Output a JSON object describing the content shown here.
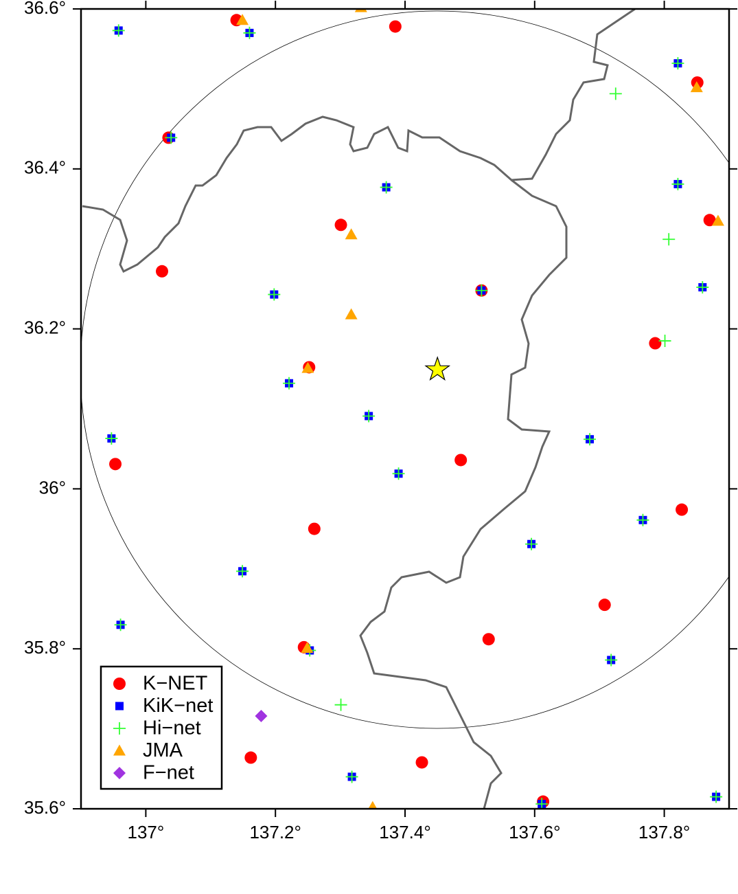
{
  "chart_data": {
    "type": "scatter",
    "xlim": [
      136.9,
      137.9
    ],
    "ylim": [
      35.6,
      36.6
    ],
    "xticks": [
      {
        "value": 137,
        "label": "137°"
      },
      {
        "value": 137.2,
        "label": "137.2°"
      },
      {
        "value": 137.4,
        "label": "137.4°"
      },
      {
        "value": 137.6,
        "label": "137.6°"
      },
      {
        "value": 137.8,
        "label": "137.8°"
      }
    ],
    "yticks": [
      {
        "value": 35.6,
        "label": "35.6°"
      },
      {
        "value": 35.8,
        "label": "35.8°"
      },
      {
        "value": 36,
        "label": "36°"
      },
      {
        "value": 36.2,
        "label": "36.2°"
      },
      {
        "value": 36.4,
        "label": "36.4°"
      },
      {
        "value": 36.6,
        "label": "36.6°"
      }
    ],
    "legend": "lower left",
    "epicenter": {
      "x": 137.45,
      "y": 36.149,
      "color": "#ffff00",
      "marker": "star"
    },
    "series": [
      {
        "name": "K−NET",
        "color": "#ff0000",
        "marker": "circle",
        "x": [
          137.14,
          137.385,
          137.851,
          137.035,
          137.87,
          137.301,
          137.025,
          137.518,
          137.786,
          137.252,
          136.953,
          137.486,
          137.827,
          137.26,
          137.708,
          137.244,
          137.529,
          137.162,
          137.426,
          137.613
        ],
        "y": [
          36.586,
          36.578,
          36.508,
          36.439,
          36.336,
          36.33,
          36.272,
          36.248,
          36.182,
          36.152,
          36.031,
          36.036,
          35.974,
          35.95,
          35.855,
          35.802,
          35.812,
          35.664,
          35.658,
          35.609
        ]
      },
      {
        "name": "KiK−net",
        "color": "#0000ff",
        "marker": "square",
        "x": [
          136.958,
          137.16,
          137.821,
          137.039,
          137.371,
          137.821,
          137.198,
          137.518,
          137.859,
          137.221,
          137.344,
          136.947,
          137.685,
          137.39,
          137.767,
          137.595,
          137.149,
          136.961,
          137.253,
          137.718,
          137.318,
          137.611,
          137.88
        ],
        "y": [
          36.573,
          36.57,
          36.532,
          36.439,
          36.377,
          36.381,
          36.243,
          36.248,
          36.252,
          36.132,
          36.091,
          36.063,
          36.062,
          36.019,
          35.961,
          35.931,
          35.897,
          35.83,
          35.798,
          35.786,
          35.64,
          35.606,
          35.615
        ]
      },
      {
        "name": "Hi−net",
        "color": "#33ff33",
        "marker": "plus",
        "x": [
          136.958,
          137.16,
          137.821,
          137.039,
          137.371,
          137.821,
          137.198,
          137.518,
          137.859,
          137.221,
          137.344,
          136.947,
          137.685,
          137.39,
          137.767,
          137.595,
          137.149,
          136.961,
          137.253,
          137.718,
          137.318,
          137.611,
          137.88,
          137.725,
          137.807,
          137.801,
          137.301
        ],
        "y": [
          36.573,
          36.57,
          36.532,
          36.439,
          36.377,
          36.381,
          36.243,
          36.248,
          36.252,
          36.132,
          36.091,
          36.063,
          36.062,
          36.019,
          35.961,
          35.931,
          35.897,
          35.83,
          35.798,
          35.786,
          35.64,
          35.606,
          35.615,
          36.494,
          36.312,
          36.185,
          35.73
        ]
      },
      {
        "name": "JMA",
        "color": "#ffa500",
        "marker": "triangle",
        "x": [
          137.332,
          137.149,
          137.85,
          137.883,
          137.317,
          137.317,
          137.25,
          137.249,
          137.35
        ],
        "y": [
          36.602,
          36.586,
          36.502,
          36.335,
          36.318,
          36.218,
          36.151,
          35.801,
          35.602
        ]
      },
      {
        "name": "F−net",
        "color": "#a033e0",
        "marker": "diamond",
        "x": [
          137.178
        ],
        "y": [
          35.716
        ]
      }
    ]
  }
}
